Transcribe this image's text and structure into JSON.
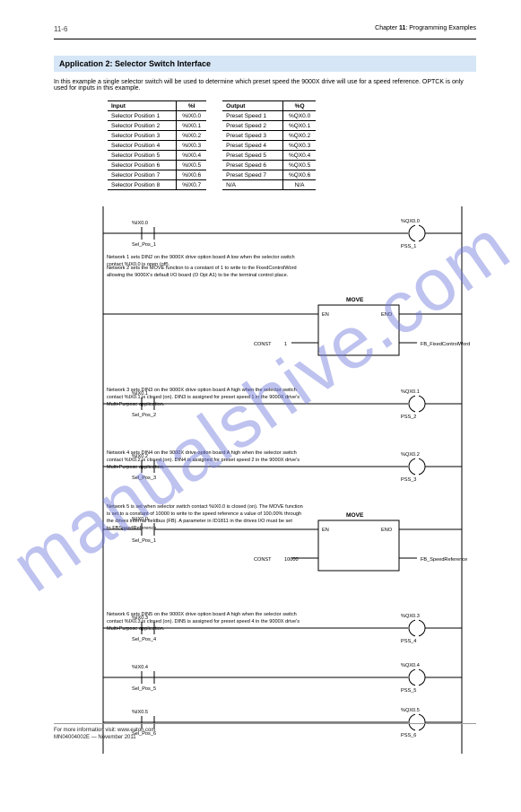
{
  "header": {
    "pageNumPrefix": "",
    "pageNum": "11-6",
    "chapter": "Chapter ",
    "chapterNum": "11",
    "title": ": Programming Examples"
  },
  "section": "Application 2: Selector Switch Interface",
  "intro": "In this example a single selector switch will be used to determine which preset speed the 9000X drive will use for a speed reference. OPTCK is only used for inputs in this example.",
  "inputTable": {
    "caption": "Input",
    "subcaption": "%I",
    "rows": [
      [
        "Selector Position 1",
        "%IX0.0"
      ],
      [
        "Selector Position 2",
        "%IX0.1"
      ],
      [
        "Selector Position 3",
        "%IX0.2"
      ],
      [
        "Selector Position 4",
        "%IX0.3"
      ],
      [
        "Selector Position 5",
        "%IX0.4"
      ],
      [
        "Selector Position 6",
        "%IX0.5"
      ],
      [
        "Selector Position 7",
        "%IX0.6"
      ],
      [
        "Selector Position 8",
        "%IX0.7"
      ]
    ]
  },
  "outputTable": {
    "caption": "Output",
    "subcaption": "%Q",
    "rows": [
      [
        "Preset Speed 1",
        "%QX0.0"
      ],
      [
        "Preset Speed 2",
        "%QX0.1"
      ],
      [
        "Preset Speed 3",
        "%QX0.2"
      ],
      [
        "Preset Speed 4",
        "%QX0.3"
      ],
      [
        "Preset Speed 5",
        "%QX0.4"
      ],
      [
        "Preset Speed 6",
        "%QX0.5"
      ],
      [
        "Preset Speed 7",
        "%QX0.6"
      ],
      [
        "N/A",
        "N/A"
      ]
    ]
  },
  "rungs": {
    "r1": {
      "contactTop": "%IX0.0",
      "contactBottom": "Sel_Pos_1",
      "coilTop": "%QX0.0",
      "coilBottom": "PSS_1",
      "desc1": "Network 1 sets DIN2 on the 9000X drive option board A low when the selector switch contact %IX0.0 is open (off).",
      "desc2": "Network 2 sets the MOVE function to a constant of 1 to write to the FixedControlWord allowing the 9000X's default I/O board (O Opt A1) to be the terminal control place."
    },
    "r2": {
      "blockTitle": "MOVE",
      "insLabel": [
        "EN",
        "ENO",
        "",
        ""
      ],
      "out": "FB_FixedControlWord",
      "constLabel": "CONST",
      "constVal": "1"
    },
    "r3": {
      "contactTop": "%IX0.1",
      "contactBottom": "Sel_Pos_2",
      "coilTop": "%QX0.1",
      "coilBottom": "PSS_2",
      "desc": "Network 3 sets DIN3 on the 9000X drive option board A high when the selector switch contact %IX0.1 is closed (on). DIN3 is assigned for preset speed 1 in the 9000X drive's Multi-Purpose application."
    },
    "r4": {
      "contactTop": "%IX0.2",
      "contactBottom": "Sel_Pos_3",
      "coilTop": "%QX0.2",
      "coilBottom": "PSS_3",
      "desc": "Network 4 sets DIN4 on the 9000X drive option board A high when the selector switch contact %IX0.2 is closed (on). DIN4 is assigned for preset speed 2 in the 9000X drive's Multi-Purpose application."
    },
    "r5": {
      "contactTop": "%IX0.0",
      "contactBottom": "Sel_Pos_1",
      "blockTitle": "MOVE",
      "out": "FB_SpeedReference",
      "constLabel": "CONST",
      "constVal": "10000",
      "desc": "Network 5 is set when selector switch contact %IX0.0 is closed (on). The MOVE function is set to a constant of 10000 to write to the speed reference a value of 100.00% through the drives internal fieldbus (FB).  A parameter in ID1811 in the drives I/O must be set to FBSpeedReference."
    },
    "r6": {
      "contactTop": "%IX0.3",
      "contactBottom": "Sel_Pos_4",
      "coilTop": "%QX0.3",
      "coilBottom": "PSS_4",
      "desc": "Network 6 sets DIN5 on the 9000X drive option board A high when the selector switch contact %IX0.3 is closed (on). DIN5 is assigned for preset speed 4 in the 9000X drive's Multi-Purpose application."
    },
    "r7": {
      "contactTop": "%IX0.4",
      "contactBottom": "Sel_Pos_5",
      "coilTop": "%QX0.4",
      "coilBottom": "PSS_5"
    },
    "r8": {
      "contactTop": "%IX0.5",
      "contactBottom": "Sel_Pos_6",
      "coilTop": "%QX0.5",
      "coilBottom": "PSS_6"
    }
  },
  "labels": {
    "enLabel": "EN",
    "enoLabel": "ENO"
  },
  "footer": {
    "line1": "For more information visit: www.eaton.com",
    "line2": "MN04004002E — November 2011"
  },
  "watermark": "manualshive.com",
  "colors": {
    "sectionBg": "#d6e6f6",
    "line": "#000000",
    "watermark": "rgba(110,120,220,0.45)"
  }
}
